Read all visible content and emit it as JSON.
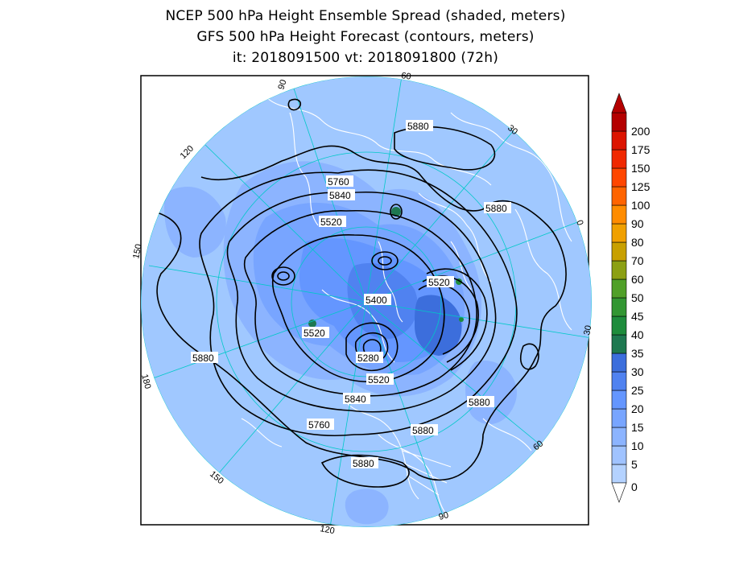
{
  "title": {
    "line1": "NCEP 500 hPa Height Ensemble Spread (shaded, meters)",
    "line2": "GFS 500 hPa Height Forecast (contours, meters)",
    "line3": "it: 2018091500      vt: 2018091800 (72h)"
  },
  "contour_labels": [
    {
      "id": "c5880-top",
      "text": "5880"
    },
    {
      "id": "c5760-a",
      "text": "5760"
    },
    {
      "id": "c5840-a",
      "text": "5840"
    },
    {
      "id": "c5520-a",
      "text": "5520"
    },
    {
      "id": "c5880-right",
      "text": "5880"
    },
    {
      "id": "c5520-b",
      "text": "5520"
    },
    {
      "id": "c5400",
      "text": "5400"
    },
    {
      "id": "c5520-c",
      "text": "5520"
    },
    {
      "id": "c5880-left",
      "text": "5880"
    },
    {
      "id": "c5280",
      "text": "5280"
    },
    {
      "id": "c5520-d",
      "text": "5520"
    },
    {
      "id": "c5840-b",
      "text": "5840"
    },
    {
      "id": "c5760-b",
      "text": "5760"
    },
    {
      "id": "c5880-bottom1",
      "text": "5880"
    },
    {
      "id": "c5880-bottom2",
      "text": "5880"
    },
    {
      "id": "c5880-bottom3",
      "text": "5880"
    }
  ],
  "meridian_labels": [
    {
      "id": "m90a",
      "text": "90"
    },
    {
      "id": "m60a",
      "text": "60"
    },
    {
      "id": "m30a",
      "text": "30"
    },
    {
      "id": "m120a",
      "text": "120"
    },
    {
      "id": "m0",
      "text": "0"
    },
    {
      "id": "m150a",
      "text": "150"
    },
    {
      "id": "m30b",
      "text": "30"
    },
    {
      "id": "m180",
      "text": "180"
    },
    {
      "id": "m60b",
      "text": "60"
    },
    {
      "id": "m150b",
      "text": "150"
    },
    {
      "id": "m90b",
      "text": "90"
    },
    {
      "id": "m120b",
      "text": "120"
    }
  ],
  "colorbar": {
    "labels": [
      "0",
      "5",
      "10",
      "15",
      "20",
      "25",
      "30",
      "35",
      "40",
      "45",
      "50",
      "60",
      "70",
      "80",
      "90",
      "100",
      "125",
      "150",
      "175",
      "200"
    ],
    "colors": [
      "#b4d2ff",
      "#a0c3ff",
      "#8cb4ff",
      "#78a5ff",
      "#6496ff",
      "#5082f0",
      "#3c6edc",
      "#1e7850",
      "#1e8c3c",
      "#329632",
      "#50a028",
      "#8ca014",
      "#c8a000",
      "#f0a000",
      "#ff8c00",
      "#ff6400",
      "#ff4600",
      "#f02800",
      "#dc1400",
      "#b40000"
    ]
  },
  "colors": {
    "background": "#ffffff",
    "map_base": "#a0c8ff",
    "coastline": "#ffffff",
    "grid": "#00c8c8",
    "contour": "#000000"
  }
}
